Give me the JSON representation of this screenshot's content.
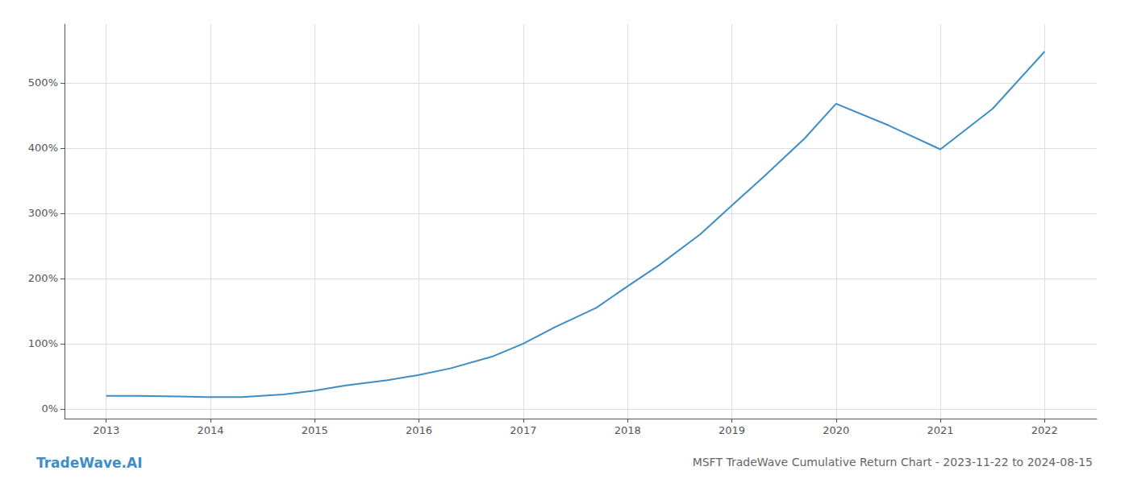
{
  "chart_data": {
    "type": "line",
    "title": "MSFT TradeWave Cumulative Return Chart - 2023-11-22 to 2024-08-15",
    "annotations": [
      "TradeWave.AI"
    ],
    "x": [
      2013.0,
      2013.3,
      2013.7,
      2014.0,
      2014.3,
      2014.7,
      2015.0,
      2015.3,
      2015.7,
      2016.0,
      2016.3,
      2016.7,
      2017.0,
      2017.3,
      2017.7,
      2018.0,
      2018.3,
      2018.7,
      2019.0,
      2019.3,
      2019.7,
      2020.0,
      2020.5,
      2021.0,
      2021.5,
      2022.0
    ],
    "values": [
      20,
      20,
      19,
      18,
      18,
      22,
      28,
      36,
      44,
      52,
      62,
      80,
      100,
      125,
      155,
      188,
      220,
      268,
      312,
      355,
      415,
      468,
      435,
      398,
      460,
      548
    ],
    "color": "#3d8ec4",
    "xlim": [
      2012.6,
      2022.5
    ],
    "xticks": [
      2013,
      2014,
      2015,
      2016,
      2017,
      2018,
      2019,
      2020,
      2021,
      2022
    ],
    "ylim": [
      -15,
      590
    ],
    "yticks": [
      {
        "value": 0,
        "label": "0%"
      },
      {
        "value": 100,
        "label": "100%"
      },
      {
        "value": 200,
        "label": "200%"
      },
      {
        "value": 300,
        "label": "300%"
      },
      {
        "value": 400,
        "label": "400%"
      },
      {
        "value": 500,
        "label": "500%"
      }
    ],
    "grid": true
  }
}
